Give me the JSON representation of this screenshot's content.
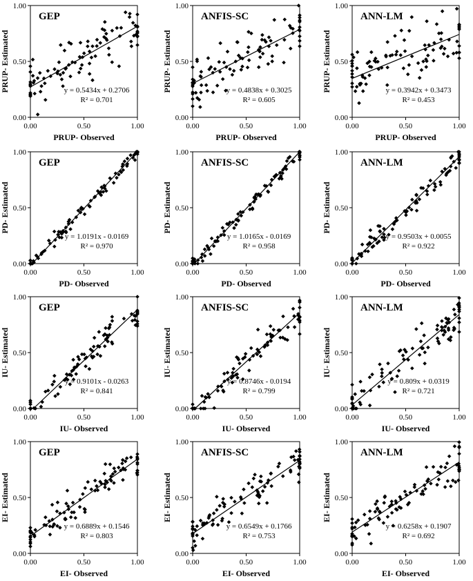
{
  "chart_data": [
    {
      "type": "scatter",
      "model": "GEP",
      "xlabel": "PRUP- Observed",
      "ylabel": "PRUP- Estimated",
      "xlim": [
        0,
        1
      ],
      "ylim": [
        0,
        1
      ],
      "xticks": [
        "0.00",
        "0.50",
        "1.00"
      ],
      "yticks": [
        "0.00",
        "0.50",
        "1.00"
      ],
      "equation": "y = 0.5434x + 0.2706",
      "r2": "R² = 0.701",
      "slope": 0.5434,
      "intercept": 0.2706,
      "scatter": 0.15,
      "seed": 11
    },
    {
      "type": "scatter",
      "model": "ANFIS-SC",
      "xlabel": "PRUP- Observed",
      "ylabel": "PRUP- Estimated",
      "xlim": [
        0,
        1
      ],
      "ylim": [
        0,
        1
      ],
      "xticks": [
        "0.00",
        "0.50",
        "1.00"
      ],
      "yticks": [
        "0.00",
        "0.50",
        "1.00"
      ],
      "equation": "y = 0.4838x + 0.3025",
      "r2": "R² = 0.605",
      "slope": 0.4838,
      "intercept": 0.3025,
      "scatter": 0.17,
      "seed": 23
    },
    {
      "type": "scatter",
      "model": "ANN-LM",
      "xlabel": "PRUP- Observed",
      "ylabel": "PRUP- Estimated",
      "xlim": [
        0,
        1
      ],
      "ylim": [
        0,
        1
      ],
      "xticks": [
        "0.00",
        "0.50",
        "1.00"
      ],
      "yticks": [
        "0.00",
        "0.50",
        "1.00"
      ],
      "equation": "y = 0.3942x + 0.3473",
      "r2": "R² = 0.453",
      "slope": 0.3942,
      "intercept": 0.3473,
      "scatter": 0.17,
      "seed": 37
    },
    {
      "type": "scatter",
      "model": "GEP",
      "xlabel": "PD- Observed",
      "ylabel": "PD- Estimated",
      "xlim": [
        0,
        1
      ],
      "ylim": [
        0,
        1
      ],
      "xticks": [
        "0.00",
        "0.50",
        "1.00"
      ],
      "yticks": [
        "0.00",
        "0.50",
        "1.00"
      ],
      "equation": "y = 1.0191x - 0.0169",
      "r2": "R² = 0.970",
      "slope": 1.0191,
      "intercept": -0.0169,
      "scatter": 0.04,
      "seed": 41
    },
    {
      "type": "scatter",
      "model": "ANFIS-SC",
      "xlabel": "PD- Observed",
      "ylabel": "PD- Estimated",
      "xlim": [
        0,
        1
      ],
      "ylim": [
        0,
        1
      ],
      "xticks": [
        "0.00",
        "0.50",
        "1.00"
      ],
      "yticks": [
        "0.00",
        "0.50",
        "1.00"
      ],
      "equation": "y = 1.0165x - 0.0169",
      "r2": "R² = 0.958",
      "slope": 1.0165,
      "intercept": -0.0169,
      "scatter": 0.05,
      "seed": 53
    },
    {
      "type": "scatter",
      "model": "ANN-LM",
      "xlabel": "PD- Observed",
      "ylabel": "PD- Estimated",
      "xlim": [
        0,
        1
      ],
      "ylim": [
        0,
        1
      ],
      "xticks": [
        "0.00",
        "0.50",
        "1.00"
      ],
      "yticks": [
        "0.00",
        "0.50",
        "1.00"
      ],
      "equation": "y = 0.9503x + 0.0055",
      "r2": "R² = 0.922",
      "slope": 0.9503,
      "intercept": 0.0055,
      "scatter": 0.07,
      "seed": 67
    },
    {
      "type": "scatter",
      "model": "GEP",
      "xlabel": "IU- Observed",
      "ylabel": "IU- Estimated",
      "xlim": [
        0,
        1
      ],
      "ylim": [
        0,
        1
      ],
      "xticks": [
        "0.00",
        "0.50",
        "1.00"
      ],
      "yticks": [
        "0.00",
        "0.50",
        "1.00"
      ],
      "equation": "y = 0.9101x - 0.0263",
      "r2": "R² = 0.841",
      "slope": 0.9101,
      "intercept": -0.0263,
      "scatter": 0.09,
      "seed": 71
    },
    {
      "type": "scatter",
      "model": "ANFIS-SC",
      "xlabel": "IU- Observed",
      "ylabel": "IU- Estimated",
      "xlim": [
        0,
        1
      ],
      "ylim": [
        0,
        1
      ],
      "xticks": [
        "0.00",
        "0.50",
        "1.00"
      ],
      "yticks": [
        "0.00",
        "0.50",
        "1.00"
      ],
      "equation": "y = 0.8746x - 0.0194",
      "r2": "R² = 0.799",
      "slope": 0.8746,
      "intercept": -0.0194,
      "scatter": 0.1,
      "seed": 83
    },
    {
      "type": "scatter",
      "model": "ANN-LM",
      "xlabel": "IU- Observed",
      "ylabel": "IU- Estimated",
      "xlim": [
        0,
        1
      ],
      "ylim": [
        0,
        1
      ],
      "xticks": [
        "0.00",
        "0.50",
        "1.00"
      ],
      "yticks": [
        "0.00",
        "0.50",
        "1.00"
      ],
      "equation": "y = 0.809x + 0.0319",
      "r2": "R² = 0.721",
      "slope": 0.809,
      "intercept": 0.0319,
      "scatter": 0.12,
      "seed": 97
    },
    {
      "type": "scatter",
      "model": "GEP",
      "xlabel": "EI- Observed",
      "ylabel": "EI- Estimated",
      "xlim": [
        0,
        1
      ],
      "ylim": [
        0,
        1
      ],
      "xticks": [
        "0.00",
        "0.50",
        "1.00"
      ],
      "yticks": [
        "0.00",
        "0.50",
        "1.00"
      ],
      "equation": "y = 0.6889x + 0.1546",
      "r2": "R² = 0.803",
      "slope": 0.6889,
      "intercept": 0.1546,
      "scatter": 0.1,
      "seed": 101
    },
    {
      "type": "scatter",
      "model": "ANFIS-SC",
      "xlabel": "EI- Observed",
      "ylabel": "EI- Estimated",
      "xlim": [
        0,
        1
      ],
      "ylim": [
        0,
        1
      ],
      "xticks": [
        "0.00",
        "0.50",
        "1.00"
      ],
      "yticks": [
        "0.00",
        "0.50",
        "1.00"
      ],
      "equation": "y = 0.6549x + 0.1766",
      "r2": "R² = 0.753",
      "slope": 0.6549,
      "intercept": 0.1766,
      "scatter": 0.11,
      "seed": 113
    },
    {
      "type": "scatter",
      "model": "ANN-LM",
      "xlabel": "EI- Observed",
      "ylabel": "EI- Estimated",
      "xlim": [
        0,
        1
      ],
      "ylim": [
        0,
        1
      ],
      "xticks": [
        "0.00",
        "0.50",
        "1.00"
      ],
      "yticks": [
        "0.00",
        "0.50",
        "1.00"
      ],
      "equation": "y = 0.6258x + 0.1907",
      "r2": "R² = 0.692",
      "slope": 0.6258,
      "intercept": 0.1907,
      "scatter": 0.12,
      "seed": 127
    }
  ]
}
